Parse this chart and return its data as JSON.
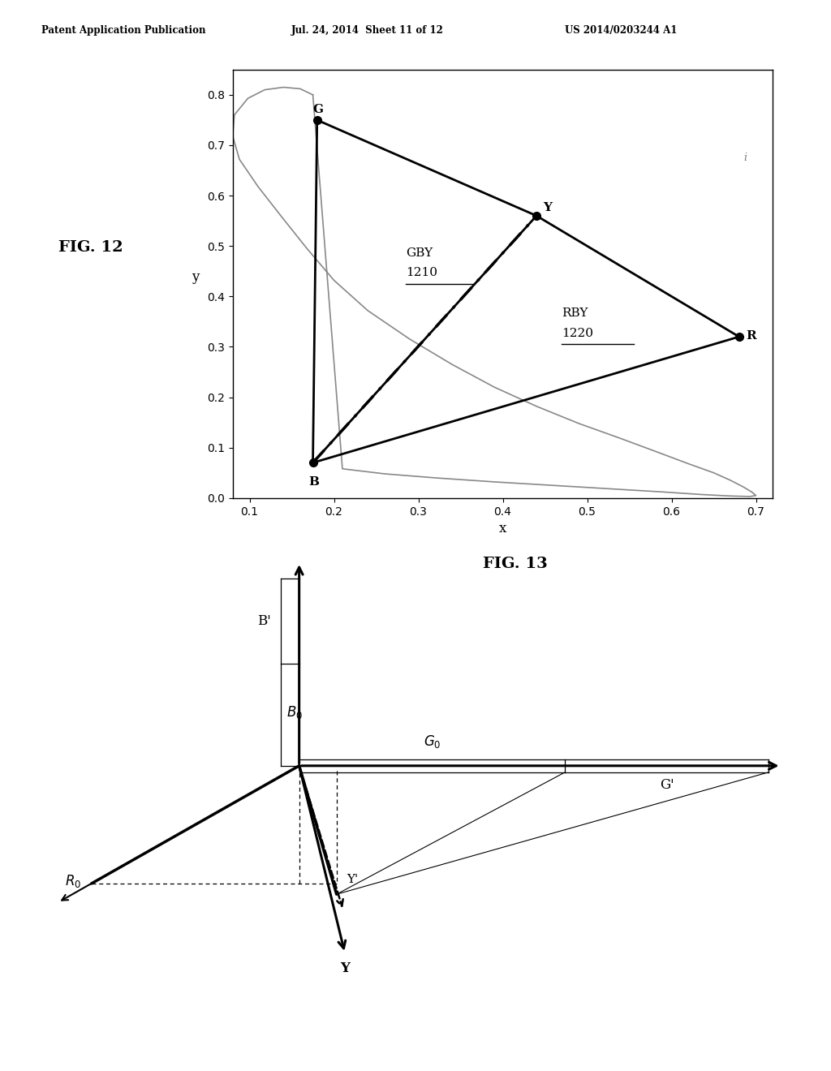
{
  "header_left": "Patent Application Publication",
  "header_mid": "Jul. 24, 2014  Sheet 11 of 12",
  "header_right": "US 2014/0203244 A1",
  "fig12_label": "FIG. 12",
  "fig13_label": "FIG. 13",
  "points": {
    "G": [
      0.18,
      0.75
    ],
    "Y": [
      0.44,
      0.56
    ],
    "B": [
      0.175,
      0.07
    ],
    "R": [
      0.68,
      0.32
    ]
  },
  "xlim": [
    0.08,
    0.72
  ],
  "ylim": [
    0.0,
    0.85
  ],
  "xticks": [
    0.1,
    0.2,
    0.3,
    0.4,
    0.5,
    0.6,
    0.7
  ],
  "yticks": [
    0.0,
    0.1,
    0.2,
    0.3,
    0.4,
    0.5,
    0.6,
    0.7,
    0.8
  ],
  "xlabel": "x",
  "ylabel": "y",
  "GBY_label": "GBY",
  "GBY_ref": "1210",
  "RBY_label": "RBY",
  "RBY_ref": "1220",
  "background_color": "#ffffff",
  "text_color": "#000000",
  "curve_color": "#888888"
}
